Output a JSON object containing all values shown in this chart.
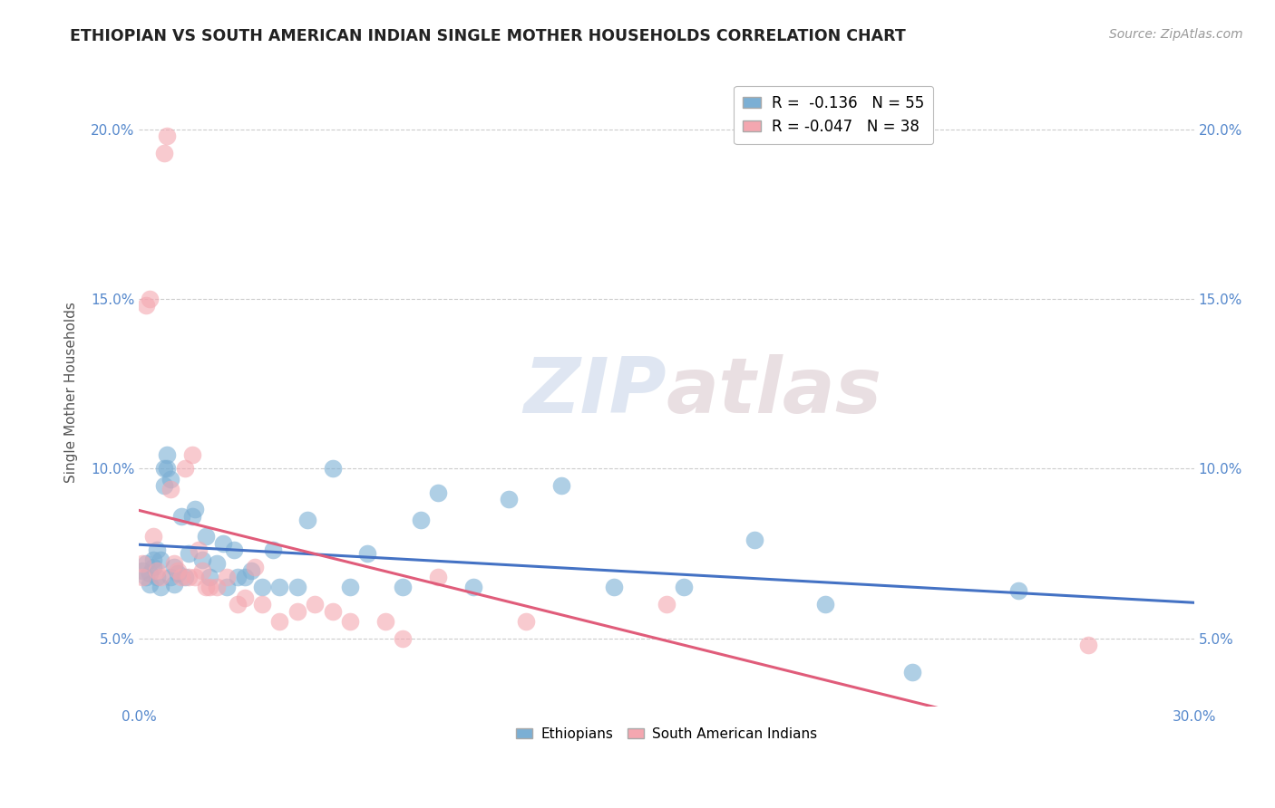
{
  "title": "ETHIOPIAN VS SOUTH AMERICAN INDIAN SINGLE MOTHER HOUSEHOLDS CORRELATION CHART",
  "source_text": "Source: ZipAtlas.com",
  "ylabel": "Single Mother Households",
  "xlim": [
    0.0,
    0.3
  ],
  "ylim": [
    0.03,
    0.215
  ],
  "x_ticks": [
    0.0,
    0.05,
    0.1,
    0.15,
    0.2,
    0.25,
    0.3
  ],
  "x_tick_labels": [
    "0.0%",
    "",
    "",
    "",
    "",
    "",
    "30.0%"
  ],
  "y_ticks": [
    0.05,
    0.1,
    0.15,
    0.2
  ],
  "y_tick_labels": [
    "5.0%",
    "10.0%",
    "15.0%",
    "20.0%"
  ],
  "r_ethiopians": -0.136,
  "n_ethiopians": 55,
  "r_south_american": -0.047,
  "n_south_american": 38,
  "ethiopians_color": "#7BAFD4",
  "south_american_color": "#F4A7B0",
  "trend_ethiopians_color": "#4472C4",
  "trend_south_american_color": "#E05C7A",
  "watermark": "ZIPAtlas",
  "watermark_color": "#D0D8E8",
  "background_color": "#FFFFFF",
  "ethiopians_x": [
    0.001,
    0.002,
    0.002,
    0.003,
    0.003,
    0.004,
    0.004,
    0.005,
    0.005,
    0.006,
    0.006,
    0.007,
    0.007,
    0.008,
    0.008,
    0.009,
    0.009,
    0.01,
    0.01,
    0.011,
    0.012,
    0.013,
    0.014,
    0.015,
    0.016,
    0.018,
    0.019,
    0.02,
    0.022,
    0.024,
    0.025,
    0.027,
    0.028,
    0.03,
    0.032,
    0.035,
    0.038,
    0.04,
    0.045,
    0.048,
    0.055,
    0.06,
    0.065,
    0.075,
    0.08,
    0.085,
    0.095,
    0.105,
    0.12,
    0.135,
    0.155,
    0.175,
    0.195,
    0.22,
    0.25
  ],
  "ethiopians_y": [
    0.07,
    0.072,
    0.068,
    0.069,
    0.066,
    0.073,
    0.071,
    0.076,
    0.068,
    0.073,
    0.065,
    0.095,
    0.1,
    0.104,
    0.1,
    0.097,
    0.068,
    0.071,
    0.066,
    0.069,
    0.086,
    0.068,
    0.075,
    0.086,
    0.088,
    0.073,
    0.08,
    0.068,
    0.072,
    0.078,
    0.065,
    0.076,
    0.068,
    0.068,
    0.07,
    0.065,
    0.076,
    0.065,
    0.065,
    0.085,
    0.1,
    0.065,
    0.075,
    0.065,
    0.085,
    0.093,
    0.065,
    0.091,
    0.095,
    0.065,
    0.065,
    0.079,
    0.06,
    0.04,
    0.064
  ],
  "south_american_x": [
    0.001,
    0.001,
    0.002,
    0.003,
    0.004,
    0.005,
    0.006,
    0.007,
    0.008,
    0.009,
    0.01,
    0.011,
    0.012,
    0.013,
    0.014,
    0.015,
    0.016,
    0.017,
    0.018,
    0.019,
    0.02,
    0.022,
    0.025,
    0.028,
    0.03,
    0.033,
    0.035,
    0.04,
    0.045,
    0.05,
    0.055,
    0.06,
    0.07,
    0.075,
    0.085,
    0.11,
    0.15,
    0.27
  ],
  "south_american_y": [
    0.072,
    0.068,
    0.148,
    0.15,
    0.08,
    0.07,
    0.068,
    0.193,
    0.198,
    0.094,
    0.072,
    0.07,
    0.068,
    0.1,
    0.068,
    0.104,
    0.068,
    0.076,
    0.07,
    0.065,
    0.065,
    0.065,
    0.068,
    0.06,
    0.062,
    0.071,
    0.06,
    0.055,
    0.058,
    0.06,
    0.058,
    0.055,
    0.055,
    0.05,
    0.068,
    0.055,
    0.06,
    0.048
  ]
}
